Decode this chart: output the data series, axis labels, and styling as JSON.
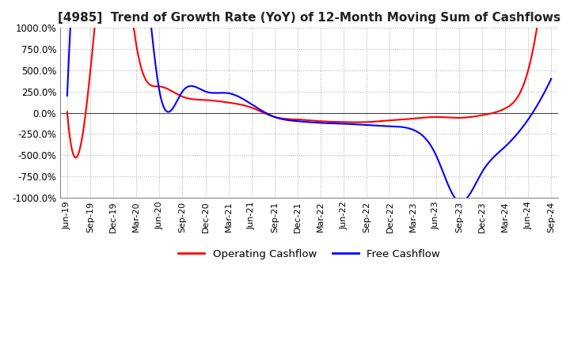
{
  "title": "[4985]  Trend of Growth Rate (YoY) of 12-Month Moving Sum of Cashflows",
  "title_fontsize": 11,
  "ylim": [
    -1000,
    1000
  ],
  "yticks": [
    -1000,
    -750,
    -500,
    -250,
    0,
    250,
    500,
    750,
    1000
  ],
  "ytick_labels": [
    "-1000.0%",
    "-750.0%",
    "-500.0%",
    "-250.0%",
    "0.0%",
    "250.0%",
    "500.0%",
    "750.0%",
    "1000.0%"
  ],
  "background_color": "#ffffff",
  "plot_bg_color": "#ffffff",
  "grid_color": "#aaaaaa",
  "operating_color": "#ff0000",
  "free_color": "#0000ff",
  "dates": [
    "Jun-19",
    "Sep-19",
    "Dec-19",
    "Mar-20",
    "Jun-20",
    "Sep-20",
    "Dec-20",
    "Mar-21",
    "Jun-21",
    "Sep-21",
    "Dec-21",
    "Mar-22",
    "Jun-22",
    "Sep-22",
    "Dec-22",
    "Mar-23",
    "Jun-23",
    "Sep-23",
    "Dec-23",
    "Mar-24",
    "Jun-24",
    "Sep-24"
  ],
  "operating_cf": [
    10,
    480,
    2500,
    800,
    310,
    190,
    150,
    120,
    60,
    -50,
    -80,
    -100,
    -110,
    -110,
    -90,
    -70,
    -50,
    -60,
    -30,
    50,
    500,
    2500
  ],
  "free_cf": [
    200,
    3000,
    2500,
    2500,
    260,
    250,
    250,
    230,
    100,
    -50,
    -100,
    -120,
    -130,
    -145,
    -160,
    -200,
    -500,
    -1050,
    -700,
    -400,
    -80,
    400
  ]
}
